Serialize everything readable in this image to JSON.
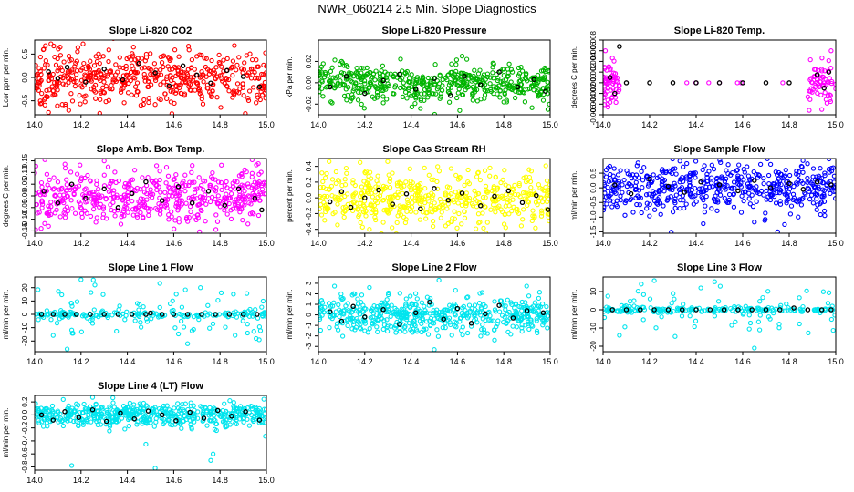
{
  "page": {
    "title": "NWR_060214  2.5 Min. Slope Diagnostics"
  },
  "chart_data": [
    {
      "type": "scatter",
      "title": "Slope Li-820 CO2",
      "ylabel": "Lcor ppm per min.",
      "xlabel": "",
      "xlim": [
        14.0,
        15.0
      ],
      "ylim": [
        -0.8,
        0.8
      ],
      "xticks": [
        "14.0",
        "14.2",
        "14.4",
        "14.6",
        "14.8",
        "15.0"
      ],
      "yticks": [
        -0.5,
        0.0,
        0.5
      ],
      "ytick_labels": [
        "-0.5",
        "0.0",
        "0.5"
      ],
      "color": "#ff0000",
      "pattern": "dense",
      "spread": 0.28,
      "outliers": [
        [
          14.07,
          0.72
        ],
        [
          14.11,
          0.65
        ],
        [
          14.06,
          -0.75
        ],
        [
          14.03,
          -0.55
        ],
        [
          14.52,
          -0.58
        ]
      ],
      "black_points": [
        [
          14.06,
          0.12
        ],
        [
          14.1,
          -0.02
        ],
        [
          14.14,
          0.22
        ],
        [
          14.22,
          -0.1
        ],
        [
          14.3,
          0.18
        ],
        [
          14.38,
          -0.05
        ],
        [
          14.45,
          0.3
        ],
        [
          14.52,
          0.1
        ],
        [
          14.58,
          -0.18
        ],
        [
          14.64,
          0.25
        ],
        [
          14.7,
          0.05
        ],
        [
          14.76,
          -0.12
        ],
        [
          14.83,
          0.15
        ],
        [
          14.9,
          0.02
        ],
        [
          14.97,
          -0.2
        ]
      ]
    },
    {
      "type": "scatter",
      "title": "Slope Li-820 Pressure",
      "ylabel": "kPa per min.",
      "xlabel": "",
      "xlim": [
        14.0,
        15.0
      ],
      "ylim": [
        -0.03,
        0.04
      ],
      "xticks": [
        "14.0",
        "14.2",
        "14.4",
        "14.6",
        "14.8",
        "15.0"
      ],
      "yticks": [
        -0.02,
        0.0,
        0.02
      ],
      "ytick_labels": [
        "-0.02",
        "0.00",
        "0.02"
      ],
      "color": "#00b400",
      "pattern": "dense",
      "spread": 0.009,
      "outliers": [
        [
          14.62,
          0.025
        ],
        [
          14.64,
          0.022
        ],
        [
          14.44,
          -0.024
        ],
        [
          14.61,
          -0.026
        ],
        [
          14.99,
          -0.025
        ],
        [
          14.1,
          0.02
        ]
      ],
      "black_points": [
        [
          14.05,
          -0.004
        ],
        [
          14.12,
          0.006
        ],
        [
          14.2,
          -0.01
        ],
        [
          14.28,
          0.002
        ],
        [
          14.35,
          0.008
        ],
        [
          14.42,
          -0.006
        ],
        [
          14.5,
          0.004
        ],
        [
          14.57,
          -0.012
        ],
        [
          14.63,
          0.006
        ],
        [
          14.7,
          -0.002
        ],
        [
          14.78,
          0.01
        ],
        [
          14.86,
          -0.004
        ],
        [
          14.93,
          0.003
        ],
        [
          14.98,
          -0.008
        ]
      ]
    },
    {
      "type": "scatter",
      "title": "Slope Li-820 Temp.",
      "ylabel": "degrees C per min.",
      "xlabel": "",
      "xlim": [
        14.0,
        15.0
      ],
      "ylim": [
        -0.006,
        0.008
      ],
      "xticks": [
        "14.0",
        "14.2",
        "14.4",
        "14.6",
        "14.8",
        "15.0"
      ],
      "yticks": [
        -0.006,
        -0.004,
        -0.002,
        0.0,
        0.002,
        0.004,
        0.006,
        0.008
      ],
      "ytick_labels": [
        "-0.006",
        "-0.004",
        "-0.002",
        "0.000",
        "0.002",
        "0.004",
        "0.006",
        "0.008"
      ],
      "color": "#ff00ff",
      "pattern": "edges",
      "spread": 0.0022,
      "outliers": [
        [
          14.01,
          0.006
        ],
        [
          14.98,
          0.006
        ],
        [
          14.94,
          -0.005
        ],
        [
          14.02,
          -0.004
        ]
      ],
      "black_points": [
        [
          14.03,
          0.001
        ],
        [
          14.05,
          -0.002
        ],
        [
          14.07,
          0.0068
        ],
        [
          14.1,
          0.0
        ],
        [
          14.2,
          0.0
        ],
        [
          14.3,
          0.0
        ],
        [
          14.4,
          0.0
        ],
        [
          14.5,
          0.0
        ],
        [
          14.6,
          0.0
        ],
        [
          14.7,
          0.0
        ],
        [
          14.8,
          0.0
        ],
        [
          14.92,
          0.0015
        ],
        [
          14.95,
          -0.001
        ],
        [
          14.97,
          0.002
        ]
      ]
    },
    {
      "type": "scatter",
      "title": "Slope Amb. Box Temp.",
      "ylabel": "degrees C per min.",
      "xlabel": "",
      "xlim": [
        14.0,
        15.0
      ],
      "ylim": [
        -0.16,
        0.16
      ],
      "xticks": [
        "14.0",
        "14.2",
        "14.4",
        "14.6",
        "14.8",
        "15.0"
      ],
      "yticks": [
        -0.15,
        -0.1,
        -0.05,
        0.0,
        0.05,
        0.1,
        0.15
      ],
      "ytick_labels": [
        "-0.15",
        "-0.10",
        "-0.05",
        "0.00",
        "0.05",
        "0.10",
        "0.15"
      ],
      "color": "#ff00ff",
      "pattern": "dense",
      "spread": 0.06,
      "outliers": [
        [
          14.3,
          0.15
        ],
        [
          14.06,
          -0.13
        ],
        [
          14.92,
          -0.12
        ],
        [
          14.68,
          0.13
        ]
      ],
      "black_points": [
        [
          14.04,
          0.02
        ],
        [
          14.1,
          -0.03
        ],
        [
          14.16,
          0.05
        ],
        [
          14.22,
          -0.01
        ],
        [
          14.3,
          0.03
        ],
        [
          14.36,
          -0.05
        ],
        [
          14.42,
          0.01
        ],
        [
          14.48,
          0.06
        ],
        [
          14.55,
          -0.02
        ],
        [
          14.62,
          0.04
        ],
        [
          14.68,
          -0.03
        ],
        [
          14.75,
          0.02
        ],
        [
          14.82,
          -0.04
        ],
        [
          14.88,
          0.03
        ],
        [
          14.95,
          -0.01
        ],
        [
          14.98,
          -0.06
        ]
      ]
    },
    {
      "type": "scatter",
      "title": "Slope Gas Stream RH",
      "ylabel": "percent per min.",
      "xlabel": "",
      "xlim": [
        14.0,
        15.0
      ],
      "ylim": [
        -0.45,
        0.5
      ],
      "xticks": [
        "14.0",
        "14.2",
        "14.4",
        "14.6",
        "14.8",
        "15.0"
      ],
      "yticks": [
        -0.4,
        -0.2,
        0.0,
        0.2,
        0.4
      ],
      "ytick_labels": [
        "-0.4",
        "-0.2",
        "0.0",
        "0.2",
        "0.4"
      ],
      "color": "#ffff00",
      "pattern": "dense",
      "spread": 0.17,
      "outliers": [
        [
          14.18,
          0.45
        ],
        [
          14.22,
          -0.4
        ],
        [
          14.74,
          0.38
        ]
      ],
      "black_points": [
        [
          14.05,
          -0.05
        ],
        [
          14.1,
          0.08
        ],
        [
          14.14,
          -0.12
        ],
        [
          14.2,
          0.0
        ],
        [
          14.26,
          0.1
        ],
        [
          14.32,
          -0.08
        ],
        [
          14.38,
          0.05
        ],
        [
          14.44,
          -0.14
        ],
        [
          14.5,
          0.12
        ],
        [
          14.56,
          -0.03
        ],
        [
          14.62,
          0.06
        ],
        [
          14.7,
          -0.1
        ],
        [
          14.76,
          0.02
        ],
        [
          14.82,
          0.09
        ],
        [
          14.88,
          -0.06
        ],
        [
          14.94,
          0.03
        ],
        [
          14.99,
          -0.15
        ]
      ]
    },
    {
      "type": "scatter",
      "title": "Slope Sample Flow",
      "ylabel": "ml/min per min.",
      "xlabel": "",
      "xlim": [
        14.0,
        15.0
      ],
      "ylim": [
        -1.55,
        1.0
      ],
      "xticks": [
        "14.0",
        "14.2",
        "14.4",
        "14.6",
        "14.8",
        "15.0"
      ],
      "yticks": [
        -1.5,
        -1.0,
        -0.5,
        0.0,
        0.5
      ],
      "ytick_labels": [
        "-1.5",
        "-1.0",
        "-0.5",
        "0.0",
        "0.5"
      ],
      "color": "#0000ff",
      "pattern": "dense",
      "spread": 0.42,
      "outliers": [
        [
          14.75,
          -1.5
        ],
        [
          14.78,
          -1.25
        ],
        [
          14.15,
          0.85
        ],
        [
          14.72,
          0.8
        ]
      ],
      "black_points": [
        [
          14.05,
          0.1
        ],
        [
          14.12,
          -0.2
        ],
        [
          14.2,
          0.3
        ],
        [
          14.28,
          0.05
        ],
        [
          14.35,
          -0.15
        ],
        [
          14.42,
          0.2
        ],
        [
          14.5,
          0.1
        ],
        [
          14.58,
          -0.1
        ],
        [
          14.65,
          0.25
        ],
        [
          14.72,
          0.0
        ],
        [
          14.8,
          0.15
        ],
        [
          14.86,
          -0.05
        ],
        [
          14.92,
          0.2
        ],
        [
          14.98,
          0.1
        ]
      ]
    },
    {
      "type": "scatter",
      "title": "Slope Line 1 Flow",
      "ylabel": "ml/min per min.",
      "xlabel": "",
      "xlim": [
        14.0,
        15.0
      ],
      "ylim": [
        -28,
        28
      ],
      "xticks": [
        "14.0",
        "14.2",
        "14.4",
        "14.6",
        "14.8",
        "15.0"
      ],
      "yticks": [
        -20,
        -10,
        0,
        10,
        20
      ],
      "ytick_labels": [
        "-20",
        "-10",
        "0",
        "10",
        "20"
      ],
      "color": "#00e5ee",
      "pattern": "sparse",
      "spread": 10,
      "outliers": [
        [
          14.2,
          26
        ],
        [
          14.14,
          -26
        ],
        [
          14.26,
          22
        ],
        [
          14.66,
          -22
        ]
      ],
      "black_points": [
        [
          14.03,
          0
        ],
        [
          14.08,
          0
        ],
        [
          14.13,
          0
        ],
        [
          14.18,
          0
        ],
        [
          14.24,
          0
        ],
        [
          14.3,
          0
        ],
        [
          14.36,
          0
        ],
        [
          14.42,
          0
        ],
        [
          14.48,
          0
        ],
        [
          14.5,
          1
        ],
        [
          14.55,
          0
        ],
        [
          14.6,
          0
        ],
        [
          14.66,
          0
        ],
        [
          14.72,
          0
        ],
        [
          14.78,
          0
        ],
        [
          14.84,
          0
        ],
        [
          14.9,
          0
        ],
        [
          14.96,
          0
        ]
      ]
    },
    {
      "type": "scatter",
      "title": "Slope Line 2 Flow",
      "ylabel": "ml/min per min.",
      "xlabel": "",
      "xlim": [
        14.0,
        15.0
      ],
      "ylim": [
        -3.5,
        3.6
      ],
      "xticks": [
        "14.0",
        "14.2",
        "14.4",
        "14.6",
        "14.8",
        "15.0"
      ],
      "yticks": [
        -3,
        -2,
        -1,
        0,
        1,
        2,
        3
      ],
      "ytick_labels": [
        "-3",
        "-2",
        "-1",
        "0",
        "1",
        "2",
        "3"
      ],
      "color": "#00e5ee",
      "pattern": "dense",
      "spread": 0.9,
      "outliers": [
        [
          14.52,
          3.3
        ],
        [
          14.5,
          -3.3
        ],
        [
          14.22,
          2.6
        ],
        [
          14.76,
          -2.4
        ]
      ],
      "black_points": [
        [
          14.05,
          0.3
        ],
        [
          14.1,
          -0.6
        ],
        [
          14.15,
          0.8
        ],
        [
          14.2,
          -0.2
        ],
        [
          14.28,
          0.5
        ],
        [
          14.35,
          -0.9
        ],
        [
          14.42,
          0.2
        ],
        [
          14.48,
          1.2
        ],
        [
          14.54,
          -0.4
        ],
        [
          14.6,
          0.6
        ],
        [
          14.66,
          -0.8
        ],
        [
          14.72,
          0.1
        ],
        [
          14.78,
          0.9
        ],
        [
          14.84,
          -0.3
        ],
        [
          14.9,
          0.4
        ],
        [
          14.97,
          0.2
        ]
      ]
    },
    {
      "type": "scatter",
      "title": "Slope Line 3 Flow",
      "ylabel": "ml/min per min.",
      "xlabel": "",
      "xlim": [
        14.0,
        15.0
      ],
      "ylim": [
        -23,
        18
      ],
      "xticks": [
        "14.0",
        "14.2",
        "14.4",
        "14.6",
        "14.8",
        "15.0"
      ],
      "yticks": [
        -20,
        -10,
        0,
        10
      ],
      "ytick_labels": [
        "-20",
        "-10",
        "0",
        "10"
      ],
      "color": "#00e5ee",
      "pattern": "sparse",
      "spread": 6,
      "outliers": [
        [
          14.22,
          16
        ],
        [
          14.65,
          -21
        ],
        [
          14.07,
          -14
        ],
        [
          14.42,
          12
        ]
      ],
      "black_points": [
        [
          14.04,
          0
        ],
        [
          14.1,
          0
        ],
        [
          14.16,
          0
        ],
        [
          14.22,
          0
        ],
        [
          14.28,
          0
        ],
        [
          14.34,
          0
        ],
        [
          14.4,
          0
        ],
        [
          14.46,
          0
        ],
        [
          14.52,
          0
        ],
        [
          14.58,
          0
        ],
        [
          14.64,
          0
        ],
        [
          14.7,
          0
        ],
        [
          14.76,
          0
        ],
        [
          14.82,
          1
        ],
        [
          14.88,
          0
        ],
        [
          14.94,
          0
        ],
        [
          14.98,
          0
        ]
      ]
    },
    {
      "type": "scatter",
      "title": "Slope Line 4 (LT) Flow",
      "ylabel": "ml/min per min.",
      "xlabel": "",
      "xlim": [
        14.0,
        15.0
      ],
      "ylim": [
        -0.85,
        0.3
      ],
      "xticks": [
        "14.0",
        "14.2",
        "14.4",
        "14.6",
        "14.8",
        "15.0"
      ],
      "yticks": [
        -0.8,
        -0.6,
        -0.4,
        -0.2,
        0.0,
        0.2
      ],
      "ytick_labels": [
        "-0.8",
        "-0.6",
        "-0.4",
        "-0.2",
        "0.0",
        "0.2"
      ],
      "color": "#00e5ee",
      "pattern": "dense",
      "spread": 0.09,
      "outliers": [
        [
          14.16,
          -0.78
        ],
        [
          14.52,
          -0.82
        ],
        [
          14.76,
          -0.7
        ],
        [
          14.77,
          -0.6
        ],
        [
          14.25,
          0.27
        ],
        [
          14.48,
          -0.45
        ]
      ],
      "black_points": [
        [
          14.03,
          0.0
        ],
        [
          14.08,
          -0.08
        ],
        [
          14.13,
          0.05
        ],
        [
          14.19,
          -0.04
        ],
        [
          14.25,
          0.08
        ],
        [
          14.31,
          -0.1
        ],
        [
          14.37,
          0.03
        ],
        [
          14.43,
          -0.06
        ],
        [
          14.49,
          0.06
        ],
        [
          14.55,
          0.0
        ],
        [
          14.61,
          -0.09
        ],
        [
          14.67,
          0.04
        ],
        [
          14.73,
          -0.05
        ],
        [
          14.79,
          0.07
        ],
        [
          14.85,
          -0.02
        ],
        [
          14.91,
          0.05
        ],
        [
          14.97,
          -0.08
        ]
      ]
    }
  ]
}
